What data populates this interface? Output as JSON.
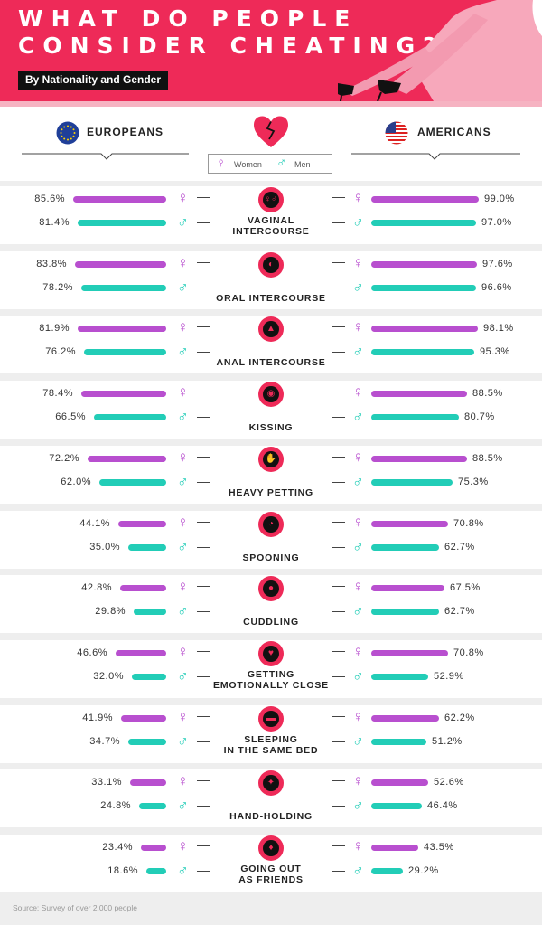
{
  "header": {
    "title": "WHAT DO PEOPLE\nCONSIDER CHEATING?",
    "subtitle": "By Nationality and Gender"
  },
  "columns": {
    "left": "EUROPEANS",
    "right": "AMERICANS"
  },
  "legend": {
    "women": "Women",
    "men": "Men"
  },
  "colors": {
    "accent": "#ee2a58",
    "women": "#b84fcf",
    "men": "#22cdb7"
  },
  "icons": {
    "left": "eu-flag-icon",
    "right": "us-flag-icon",
    "center": "heart-icon"
  },
  "chart_data": {
    "type": "bar",
    "categories": [
      "VAGINAL\nINTERCOURSE",
      "ORAL INTERCOURSE",
      "ANAL INTERCOURSE",
      "KISSING",
      "HEAVY PETTING",
      "SPOONING",
      "CUDDLING",
      "GETTING\nEMOTIONALLY CLOSE",
      "SLEEPING\nIN THE SAME BED",
      "HAND-HOLDING",
      "GOING OUT\nAS FRIENDS"
    ],
    "unit": "%",
    "series": [
      {
        "name": "Europeans Women",
        "values": [
          85.6,
          83.8,
          81.9,
          78.4,
          72.2,
          44.1,
          42.8,
          46.6,
          41.9,
          33.1,
          23.4
        ],
        "labels": [
          "85.6%",
          "83.8%",
          "81.9%",
          "78.4%",
          "72.2%",
          "44.1%",
          "42.8%",
          "46.6%",
          "41.9%",
          "33.1%",
          "23.4%"
        ]
      },
      {
        "name": "Europeans Men",
        "values": [
          81.4,
          78.2,
          76.2,
          66.5,
          62.0,
          35.0,
          29.8,
          32.0,
          34.7,
          24.8,
          18.6
        ],
        "labels": [
          "81.4%",
          "78.2%",
          "76.2%",
          "66.5%",
          "62.0%",
          "35.0%",
          "29.8%",
          "32.0%",
          "34.7%",
          "24.8%",
          "18.6%"
        ]
      },
      {
        "name": "Americans Women",
        "values": [
          99.0,
          97.6,
          98.1,
          88.5,
          88.5,
          70.8,
          67.5,
          70.8,
          62.2,
          52.6,
          43.5
        ],
        "labels": [
          "99.0%",
          "97.6%",
          "98.1%",
          "88.5%",
          "88.5%",
          "70.8%",
          "67.5%",
          "70.8%",
          "62.2%",
          "52.6%",
          "43.5%"
        ]
      },
      {
        "name": "Americans Men",
        "values": [
          97.0,
          96.6,
          95.3,
          80.7,
          75.3,
          62.7,
          62.7,
          52.9,
          51.2,
          46.4,
          29.2
        ],
        "labels": [
          "97.0%",
          "96.6%",
          "95.3%",
          "80.7%",
          "75.3%",
          "62.7%",
          "62.7%",
          "52.9%",
          "51.2%",
          "46.4%",
          "29.2%"
        ]
      }
    ],
    "xlim": [
      0,
      100
    ]
  },
  "source": "Source: Survey of over 2,000 people"
}
